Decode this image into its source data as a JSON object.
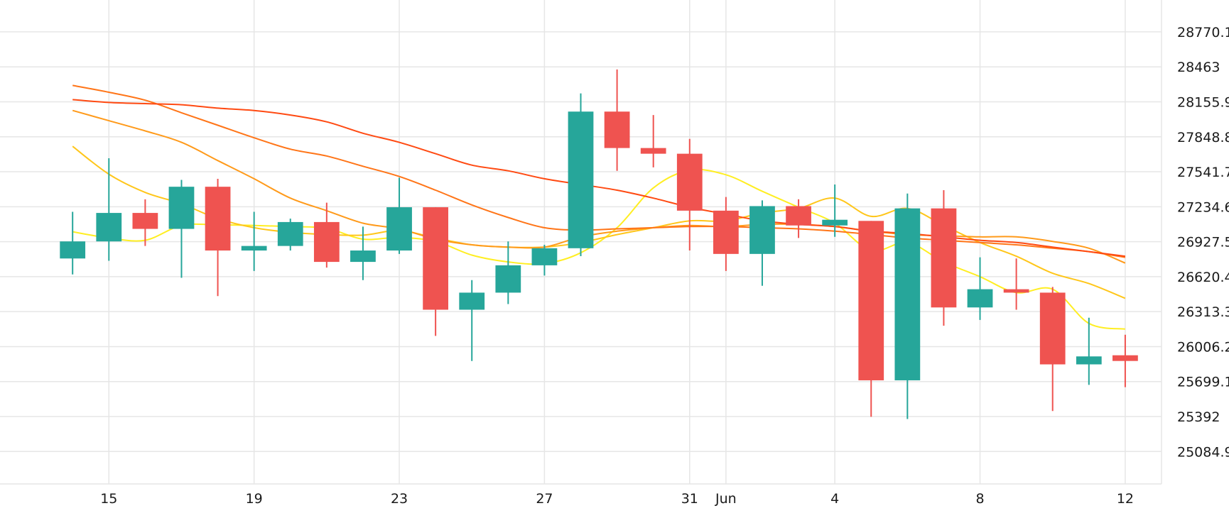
{
  "chart_data": {
    "type": "candlestick",
    "grid": true,
    "colors": {
      "up": "#26a69a",
      "down": "#ef5350",
      "grid": "#e6e6e6"
    },
    "x_ticks": [
      {
        "label": "15",
        "date": "2023-05-15"
      },
      {
        "label": "19",
        "date": "2023-05-19"
      },
      {
        "label": "23",
        "date": "2023-05-23"
      },
      {
        "label": "27",
        "date": "2023-05-27"
      },
      {
        "label": "31",
        "date": "2023-05-31"
      },
      {
        "label": "Jun",
        "date": "2023-06-01"
      },
      {
        "label": "4",
        "date": "2023-06-04"
      },
      {
        "label": "8",
        "date": "2023-06-08"
      },
      {
        "label": "12",
        "date": "2023-06-12"
      }
    ],
    "y_ticks": [
      "25084.9",
      "25392",
      "25699.1",
      "26006.2",
      "26313.3",
      "26620.4",
      "26927.5",
      "27234.6",
      "27541.7",
      "27848.8",
      "28155.9",
      "28463",
      "28770.1"
    ],
    "ylim": [
      24800,
      29050
    ],
    "xlim": [
      "2023-05-12",
      "2023-06-13"
    ],
    "candles": [
      {
        "date": "2023-05-14",
        "open": 26780,
        "high": 27190,
        "low": 26640,
        "close": 26930
      },
      {
        "date": "2023-05-15",
        "open": 26930,
        "high": 27660,
        "low": 26760,
        "close": 27180
      },
      {
        "date": "2023-05-16",
        "open": 27180,
        "high": 27300,
        "low": 26890,
        "close": 27040
      },
      {
        "date": "2023-05-17",
        "open": 27040,
        "high": 27470,
        "low": 26610,
        "close": 27410
      },
      {
        "date": "2023-05-18",
        "open": 27410,
        "high": 27480,
        "low": 26450,
        "close": 26850
      },
      {
        "date": "2023-05-19",
        "open": 26850,
        "high": 27190,
        "low": 26670,
        "close": 26890
      },
      {
        "date": "2023-05-20",
        "open": 26890,
        "high": 27130,
        "low": 26850,
        "close": 27100
      },
      {
        "date": "2023-05-21",
        "open": 27100,
        "high": 27270,
        "low": 26700,
        "close": 26750
      },
      {
        "date": "2023-05-22",
        "open": 26750,
        "high": 27060,
        "low": 26590,
        "close": 26850
      },
      {
        "date": "2023-05-23",
        "open": 26850,
        "high": 27490,
        "low": 26820,
        "close": 27230
      },
      {
        "date": "2023-05-24",
        "open": 27230,
        "high": 27230,
        "low": 26100,
        "close": 26330
      },
      {
        "date": "2023-05-25",
        "open": 26330,
        "high": 26590,
        "low": 25880,
        "close": 26480
      },
      {
        "date": "2023-05-26",
        "open": 26480,
        "high": 26930,
        "low": 26380,
        "close": 26720
      },
      {
        "date": "2023-05-27",
        "open": 26720,
        "high": 26900,
        "low": 26630,
        "close": 26870
      },
      {
        "date": "2023-05-28",
        "open": 26870,
        "high": 28230,
        "low": 26800,
        "close": 28070
      },
      {
        "date": "2023-05-29",
        "open": 28070,
        "high": 28440,
        "low": 27550,
        "close": 27750
      },
      {
        "date": "2023-05-30",
        "open": 27750,
        "high": 28040,
        "low": 27580,
        "close": 27700
      },
      {
        "date": "2023-05-31",
        "open": 27700,
        "high": 27830,
        "low": 26850,
        "close": 27200
      },
      {
        "date": "2023-06-01",
        "open": 27200,
        "high": 27320,
        "low": 26670,
        "close": 26820
      },
      {
        "date": "2023-06-02",
        "open": 26820,
        "high": 27290,
        "low": 26540,
        "close": 27240
      },
      {
        "date": "2023-06-03",
        "open": 27240,
        "high": 27300,
        "low": 26960,
        "close": 27070
      },
      {
        "date": "2023-06-04",
        "open": 27070,
        "high": 27430,
        "low": 26970,
        "close": 27120
      },
      {
        "date": "2023-06-05",
        "open": 27110,
        "high": 27110,
        "low": 25390,
        "close": 25710
      },
      {
        "date": "2023-06-06",
        "open": 25710,
        "high": 27350,
        "low": 25370,
        "close": 27220
      },
      {
        "date": "2023-06-07",
        "open": 27220,
        "high": 27380,
        "low": 26190,
        "close": 26350
      },
      {
        "date": "2023-06-08",
        "open": 26350,
        "high": 26790,
        "low": 26240,
        "close": 26510
      },
      {
        "date": "2023-06-09",
        "open": 26510,
        "high": 26780,
        "low": 26330,
        "close": 26480
      },
      {
        "date": "2023-06-10",
        "open": 26480,
        "high": 26530,
        "low": 25440,
        "close": 25850
      },
      {
        "date": "2023-06-11",
        "open": 25850,
        "high": 26260,
        "low": 25670,
        "close": 25920
      },
      {
        "date": "2023-06-12",
        "open": 25930,
        "high": 26110,
        "low": 25650,
        "close": 25880
      }
    ],
    "moving_averages": [
      {
        "color": "#ffee22",
        "values": [
          {
            "date": "2023-05-14",
            "value": 27015
          },
          {
            "date": "2023-05-15",
            "value": 26960
          },
          {
            "date": "2023-05-16",
            "value": 26940
          },
          {
            "date": "2023-05-17",
            "value": 27070
          },
          {
            "date": "2023-05-18",
            "value": 27075
          },
          {
            "date": "2023-05-19",
            "value": 27070
          },
          {
            "date": "2023-05-20",
            "value": 27060
          },
          {
            "date": "2023-05-21",
            "value": 27045
          },
          {
            "date": "2023-05-22",
            "value": 26950
          },
          {
            "date": "2023-05-23",
            "value": 26965
          },
          {
            "date": "2023-05-24",
            "value": 26930
          },
          {
            "date": "2023-05-25",
            "value": 26810
          },
          {
            "date": "2023-05-26",
            "value": 26750
          },
          {
            "date": "2023-05-27",
            "value": 26735
          },
          {
            "date": "2023-05-28",
            "value": 26830
          },
          {
            "date": "2023-05-29",
            "value": 27050
          },
          {
            "date": "2023-05-30",
            "value": 27400
          },
          {
            "date": "2023-05-31",
            "value": 27555
          },
          {
            "date": "2023-06-01",
            "value": 27515
          },
          {
            "date": "2023-06-02",
            "value": 27370
          },
          {
            "date": "2023-06-03",
            "value": 27230
          },
          {
            "date": "2023-06-04",
            "value": 27090
          },
          {
            "date": "2023-06-05",
            "value": 26850
          },
          {
            "date": "2023-06-06",
            "value": 26920
          },
          {
            "date": "2023-06-07",
            "value": 26750
          },
          {
            "date": "2023-06-08",
            "value": 26620
          },
          {
            "date": "2023-06-09",
            "value": 26480
          },
          {
            "date": "2023-06-10",
            "value": 26510
          },
          {
            "date": "2023-06-11",
            "value": 26210
          },
          {
            "date": "2023-06-12",
            "value": 26160
          }
        ]
      },
      {
        "color": "#ffc61a",
        "values": [
          {
            "date": "2023-05-14",
            "value": 27765
          },
          {
            "date": "2023-05-15",
            "value": 27520
          },
          {
            "date": "2023-05-16",
            "value": 27360
          },
          {
            "date": "2023-05-17",
            "value": 27260
          },
          {
            "date": "2023-05-18",
            "value": 27130
          },
          {
            "date": "2023-05-19",
            "value": 27050
          },
          {
            "date": "2023-05-20",
            "value": 27010
          },
          {
            "date": "2023-05-21",
            "value": 26990
          },
          {
            "date": "2023-05-22",
            "value": 26985
          },
          {
            "date": "2023-05-23",
            "value": 27025
          },
          {
            "date": "2023-05-24",
            "value": 26960
          },
          {
            "date": "2023-05-25",
            "value": 26900
          },
          {
            "date": "2023-05-26",
            "value": 26880
          },
          {
            "date": "2023-05-27",
            "value": 26880
          },
          {
            "date": "2023-05-28",
            "value": 26920
          },
          {
            "date": "2023-05-29",
            "value": 26990
          },
          {
            "date": "2023-05-30",
            "value": 27050
          },
          {
            "date": "2023-05-31",
            "value": 27110
          },
          {
            "date": "2023-06-01",
            "value": 27110
          },
          {
            "date": "2023-06-02",
            "value": 27180
          },
          {
            "date": "2023-06-03",
            "value": 27220
          },
          {
            "date": "2023-06-04",
            "value": 27310
          },
          {
            "date": "2023-06-05",
            "value": 27150
          },
          {
            "date": "2023-06-06",
            "value": 27220
          },
          {
            "date": "2023-06-07",
            "value": 27070
          },
          {
            "date": "2023-06-08",
            "value": 26920
          },
          {
            "date": "2023-06-09",
            "value": 26800
          },
          {
            "date": "2023-06-10",
            "value": 26650
          },
          {
            "date": "2023-06-11",
            "value": 26560
          },
          {
            "date": "2023-06-12",
            "value": 26430
          }
        ]
      },
      {
        "color": "#ff9a1a",
        "values": [
          {
            "date": "2023-05-14",
            "value": 28080
          },
          {
            "date": "2023-05-15",
            "value": 27990
          },
          {
            "date": "2023-05-16",
            "value": 27900
          },
          {
            "date": "2023-05-17",
            "value": 27800
          },
          {
            "date": "2023-05-18",
            "value": 27640
          },
          {
            "date": "2023-05-19",
            "value": 27480
          },
          {
            "date": "2023-05-20",
            "value": 27310
          },
          {
            "date": "2023-05-21",
            "value": 27200
          },
          {
            "date": "2023-05-22",
            "value": 27090
          },
          {
            "date": "2023-05-23",
            "value": 27040
          },
          {
            "date": "2023-05-24",
            "value": 26950
          },
          {
            "date": "2023-05-25",
            "value": 26900
          },
          {
            "date": "2023-05-26",
            "value": 26880
          },
          {
            "date": "2023-05-27",
            "value": 26880
          },
          {
            "date": "2023-05-28",
            "value": 26970
          },
          {
            "date": "2023-05-29",
            "value": 27020
          },
          {
            "date": "2023-05-30",
            "value": 27050
          },
          {
            "date": "2023-05-31",
            "value": 27070
          },
          {
            "date": "2023-06-01",
            "value": 27060
          },
          {
            "date": "2023-06-02",
            "value": 27080
          },
          {
            "date": "2023-06-03",
            "value": 27080
          },
          {
            "date": "2023-06-04",
            "value": 27060
          },
          {
            "date": "2023-06-05",
            "value": 27020
          },
          {
            "date": "2023-06-06",
            "value": 26990
          },
          {
            "date": "2023-06-07",
            "value": 26980
          },
          {
            "date": "2023-06-08",
            "value": 26970
          },
          {
            "date": "2023-06-09",
            "value": 26970
          },
          {
            "date": "2023-06-10",
            "value": 26930
          },
          {
            "date": "2023-06-11",
            "value": 26870
          },
          {
            "date": "2023-06-12",
            "value": 26740
          }
        ]
      },
      {
        "color": "#ff7518",
        "values": [
          {
            "date": "2023-05-14",
            "value": 28300
          },
          {
            "date": "2023-05-15",
            "value": 28240
          },
          {
            "date": "2023-05-16",
            "value": 28170
          },
          {
            "date": "2023-05-17",
            "value": 28060
          },
          {
            "date": "2023-05-18",
            "value": 27950
          },
          {
            "date": "2023-05-19",
            "value": 27840
          },
          {
            "date": "2023-05-20",
            "value": 27740
          },
          {
            "date": "2023-05-21",
            "value": 27680
          },
          {
            "date": "2023-05-22",
            "value": 27590
          },
          {
            "date": "2023-05-23",
            "value": 27500
          },
          {
            "date": "2023-05-24",
            "value": 27380
          },
          {
            "date": "2023-05-25",
            "value": 27250
          },
          {
            "date": "2023-05-26",
            "value": 27140
          },
          {
            "date": "2023-05-27",
            "value": 27050
          },
          {
            "date": "2023-05-28",
            "value": 27030
          },
          {
            "date": "2023-05-29",
            "value": 27040
          },
          {
            "date": "2023-05-30",
            "value": 27050
          },
          {
            "date": "2023-05-31",
            "value": 27060
          },
          {
            "date": "2023-06-01",
            "value": 27060
          },
          {
            "date": "2023-06-02",
            "value": 27050
          },
          {
            "date": "2023-06-03",
            "value": 27040
          },
          {
            "date": "2023-06-04",
            "value": 27020
          },
          {
            "date": "2023-06-05",
            "value": 26990
          },
          {
            "date": "2023-06-06",
            "value": 26960
          },
          {
            "date": "2023-06-07",
            "value": 26940
          },
          {
            "date": "2023-06-08",
            "value": 26920
          },
          {
            "date": "2023-06-09",
            "value": 26900
          },
          {
            "date": "2023-06-10",
            "value": 26870
          },
          {
            "date": "2023-06-11",
            "value": 26840
          },
          {
            "date": "2023-06-12",
            "value": 26790
          }
        ]
      },
      {
        "color": "#ff4a12",
        "values": [
          {
            "date": "2023-05-14",
            "value": 28175
          },
          {
            "date": "2023-05-15",
            "value": 28150
          },
          {
            "date": "2023-05-16",
            "value": 28140
          },
          {
            "date": "2023-05-17",
            "value": 28130
          },
          {
            "date": "2023-05-18",
            "value": 28100
          },
          {
            "date": "2023-05-19",
            "value": 28080
          },
          {
            "date": "2023-05-20",
            "value": 28040
          },
          {
            "date": "2023-05-21",
            "value": 27980
          },
          {
            "date": "2023-05-22",
            "value": 27880
          },
          {
            "date": "2023-05-23",
            "value": 27800
          },
          {
            "date": "2023-05-24",
            "value": 27700
          },
          {
            "date": "2023-05-25",
            "value": 27600
          },
          {
            "date": "2023-05-26",
            "value": 27550
          },
          {
            "date": "2023-05-27",
            "value": 27480
          },
          {
            "date": "2023-05-28",
            "value": 27430
          },
          {
            "date": "2023-05-29",
            "value": 27380
          },
          {
            "date": "2023-05-30",
            "value": 27310
          },
          {
            "date": "2023-05-31",
            "value": 27230
          },
          {
            "date": "2023-06-01",
            "value": 27170
          },
          {
            "date": "2023-06-02",
            "value": 27110
          },
          {
            "date": "2023-06-03",
            "value": 27080
          },
          {
            "date": "2023-06-04",
            "value": 27060
          },
          {
            "date": "2023-06-05",
            "value": 27020
          },
          {
            "date": "2023-06-06",
            "value": 27000
          },
          {
            "date": "2023-06-07",
            "value": 26970
          },
          {
            "date": "2023-06-08",
            "value": 26940
          },
          {
            "date": "2023-06-09",
            "value": 26920
          },
          {
            "date": "2023-06-10",
            "value": 26880
          },
          {
            "date": "2023-06-11",
            "value": 26840
          },
          {
            "date": "2023-06-12",
            "value": 26800
          }
        ]
      }
    ]
  }
}
